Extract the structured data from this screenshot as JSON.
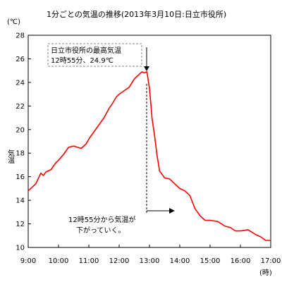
{
  "chart_data": {
    "type": "line",
    "title": "1分ごとの気温の推移(2013年3月10日:日立市役所)",
    "ylabel": "気温",
    "y_unit": "(℃)",
    "x_unit": "(時)",
    "ylim": [
      10,
      28
    ],
    "y_ticks": [
      "10",
      "12",
      "14",
      "16",
      "18",
      "20",
      "22",
      "24",
      "26",
      "28"
    ],
    "x_ticks": [
      "9:00",
      "10:00",
      "11:00",
      "12:00",
      "13:00",
      "14:00",
      "15:00",
      "16:00",
      "17:00"
    ],
    "grid": false,
    "series_color": "#ff0000",
    "series": [
      {
        "x": [
          "9:00",
          "9:15",
          "9:25",
          "9:30",
          "9:35",
          "9:45",
          "9:55",
          "10:00",
          "10:10",
          "10:20",
          "10:30",
          "10:45",
          "10:55",
          "11:00",
          "11:10",
          "11:20",
          "11:30",
          "11:40",
          "11:45",
          "11:55",
          "12:00",
          "12:10",
          "12:20",
          "12:30",
          "12:40",
          "12:45",
          "12:50",
          "12:55",
          "13:00",
          "13:03",
          "13:05",
          "13:10",
          "13:15",
          "13:20",
          "13:30",
          "13:40",
          "13:50",
          "14:00",
          "14:10",
          "14:20",
          "14:30",
          "14:40",
          "14:50",
          "15:00",
          "15:15",
          "15:30",
          "15:40",
          "15:50",
          "16:00",
          "16:15",
          "16:30",
          "16:40",
          "16:50",
          "17:00"
        ],
        "values": [
          14.8,
          15.4,
          16.3,
          16.1,
          16.4,
          16.6,
          17.2,
          17.4,
          17.9,
          18.5,
          18.6,
          18.4,
          18.8,
          19.2,
          19.8,
          20.4,
          21.0,
          21.8,
          22.1,
          22.8,
          23.0,
          23.3,
          23.6,
          24.3,
          24.7,
          24.9,
          24.8,
          24.9,
          23.5,
          22.0,
          21.0,
          19.5,
          17.8,
          16.5,
          15.9,
          15.8,
          15.4,
          15.0,
          14.8,
          14.4,
          13.3,
          12.7,
          12.3,
          12.3,
          12.2,
          11.8,
          11.7,
          11.4,
          11.4,
          11.5,
          11.1,
          10.9,
          10.6,
          10.6
        ]
      }
    ],
    "annotations": {
      "max_box_line1": "日立市役所の最高気温",
      "max_box_line2": "12時55分、24.9℃",
      "drop_line1": "12時55分から気温が",
      "drop_line2": "下がっていく。"
    }
  }
}
